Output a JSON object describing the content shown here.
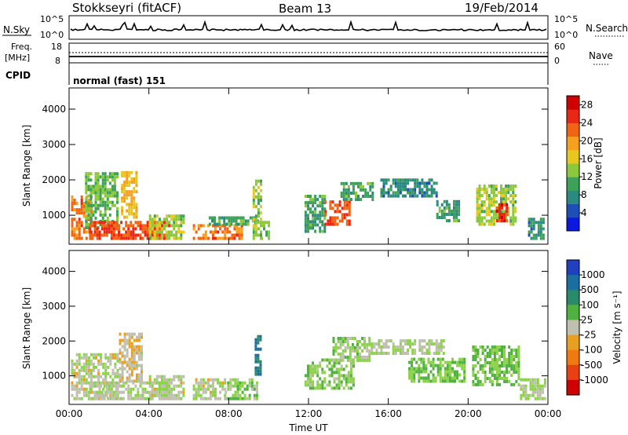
{
  "header": {
    "radar": "Stokkseyri (fitACF)",
    "beam": "Beam 13",
    "date": "19/Feb/2014"
  },
  "strip_panels": {
    "nsky": {
      "label": "N.Sky",
      "ticks_left": [
        "10^5",
        "10^0"
      ]
    },
    "nsearch": {
      "label": "N.Search",
      "ticks_right": [
        "10^5",
        "10^0"
      ]
    },
    "freq": {
      "label_line1": "Freq.",
      "label_line2": "[MHz]",
      "ticks_left": [
        "18",
        "8"
      ]
    },
    "nave": {
      "label": "Nave",
      "ticks_right": [
        "60",
        "0"
      ]
    },
    "cpid": {
      "label": "CPID",
      "text": "normal (fast) 151"
    }
  },
  "colors": {
    "power": [
      "#0a18e0",
      "#1e4fb8",
      "#2a8a80",
      "#3fa05a",
      "#8cc83c",
      "#e6c81e",
      "#f5a01e",
      "#f06414",
      "#e82814",
      "#d00000"
    ],
    "velocity": [
      "#2040c0",
      "#1a6ea0",
      "#2a8a6a",
      "#50b040",
      "#8cd24a",
      "#c0c0b0",
      "#e8a020",
      "#f07a10",
      "#e84010",
      "#d00000"
    ]
  },
  "chart_data": [
    {
      "type": "heatmap",
      "name": "power",
      "ylabel": "Slant Range [km]",
      "yticks": [
        "1000",
        "2000",
        "3000",
        "4000"
      ],
      "ylim": [
        180,
        4600
      ],
      "xlim": [
        "00:00",
        "24:00"
      ],
      "xticks": [
        "00:00",
        "04:00",
        "08:00",
        "12:00",
        "16:00",
        "20:00",
        "00:00"
      ],
      "colorbar": {
        "label": "Power [dB]",
        "ticks": [
          "4",
          "8",
          "12",
          "16",
          "20",
          "24",
          "28"
        ],
        "range": [
          0,
          30
        ]
      },
      "regions": [
        {
          "t": [
            0.1,
            1.1
          ],
          "r": [
            300,
            1500
          ],
          "v": 22
        },
        {
          "t": [
            0.8,
            2.4
          ],
          "r": [
            600,
            2200
          ],
          "v": 12
        },
        {
          "t": [
            2.6,
            3.4
          ],
          "r": [
            900,
            2200
          ],
          "v": 18
        },
        {
          "t": [
            1.0,
            5.0
          ],
          "r": [
            300,
            800
          ],
          "v": 24
        },
        {
          "t": [
            4.0,
            5.8
          ],
          "r": [
            300,
            1000
          ],
          "v": 14
        },
        {
          "t": [
            6.2,
            8.6
          ],
          "r": [
            300,
            700
          ],
          "v": 22
        },
        {
          "t": [
            7.0,
            9.4
          ],
          "r": [
            700,
            900
          ],
          "v": 10
        },
        {
          "t": [
            9.2,
            9.6
          ],
          "r": [
            300,
            2000
          ],
          "v": 14
        },
        {
          "t": [
            9.6,
            10.0
          ],
          "r": [
            300,
            800
          ],
          "v": 12
        },
        {
          "t": [
            11.8,
            12.8
          ],
          "r": [
            500,
            1500
          ],
          "v": 10
        },
        {
          "t": [
            12.8,
            14.0
          ],
          "r": [
            700,
            1400
          ],
          "v": 24
        },
        {
          "t": [
            13.6,
            15.2
          ],
          "r": [
            1400,
            1900
          ],
          "v": 10
        },
        {
          "t": [
            15.6,
            18.4
          ],
          "r": [
            1500,
            2000
          ],
          "v": 8
        },
        {
          "t": [
            18.4,
            19.6
          ],
          "r": [
            800,
            1400
          ],
          "v": 10
        },
        {
          "t": [
            20.4,
            22.4
          ],
          "r": [
            700,
            1800
          ],
          "v": 14
        },
        {
          "t": [
            21.4,
            22.0
          ],
          "r": [
            800,
            1300
          ],
          "v": 25
        },
        {
          "t": [
            23.0,
            23.8
          ],
          "r": [
            300,
            900
          ],
          "v": 8
        }
      ]
    },
    {
      "type": "heatmap",
      "name": "velocity",
      "ylabel": "Slant Range [km]",
      "xlabel": "Time UT",
      "yticks": [
        "1000",
        "2000",
        "3000",
        "4000"
      ],
      "ylim": [
        180,
        4600
      ],
      "xlim": [
        "00:00",
        "24:00"
      ],
      "xticks": [
        "00:00",
        "04:00",
        "08:00",
        "12:00",
        "16:00",
        "20:00",
        "00:00"
      ],
      "colorbar": {
        "label": "Velocity [m s⁻¹]",
        "ticks": [
          "1000",
          "500",
          "100",
          "25",
          "-25",
          "-100",
          "-500",
          "-1000"
        ],
        "range": [
          -1500,
          1500
        ]
      },
      "regions": [
        {
          "t": [
            0.1,
            2.5
          ],
          "r": [
            300,
            1600
          ],
          "v": 80
        },
        {
          "t": [
            2.5,
            3.6
          ],
          "r": [
            800,
            2200
          ],
          "v": 250
        },
        {
          "t": [
            1.0,
            5.0
          ],
          "r": [
            300,
            800
          ],
          "v": 40
        },
        {
          "t": [
            4.0,
            5.8
          ],
          "r": [
            300,
            1000
          ],
          "v": 60
        },
        {
          "t": [
            6.2,
            7.8
          ],
          "r": [
            300,
            900
          ],
          "v": 60
        },
        {
          "t": [
            7.8,
            9.4
          ],
          "r": [
            300,
            900
          ],
          "v": -200
        },
        {
          "t": [
            9.3,
            9.6
          ],
          "r": [
            1000,
            2100
          ],
          "v": -900
        },
        {
          "t": [
            11.8,
            14.2
          ],
          "r": [
            600,
            1500
          ],
          "v": -200
        },
        {
          "t": [
            13.2,
            15.0
          ],
          "r": [
            1400,
            2100
          ],
          "v": -150
        },
        {
          "t": [
            15.0,
            18.8
          ],
          "r": [
            1600,
            2000
          ],
          "v": 0
        },
        {
          "t": [
            17.0,
            19.8
          ],
          "r": [
            800,
            1500
          ],
          "v": -300
        },
        {
          "t": [
            20.2,
            22.6
          ],
          "r": [
            700,
            1800
          ],
          "v": -300
        },
        {
          "t": [
            22.6,
            23.9
          ],
          "r": [
            300,
            900
          ],
          "v": 10
        }
      ]
    }
  ]
}
